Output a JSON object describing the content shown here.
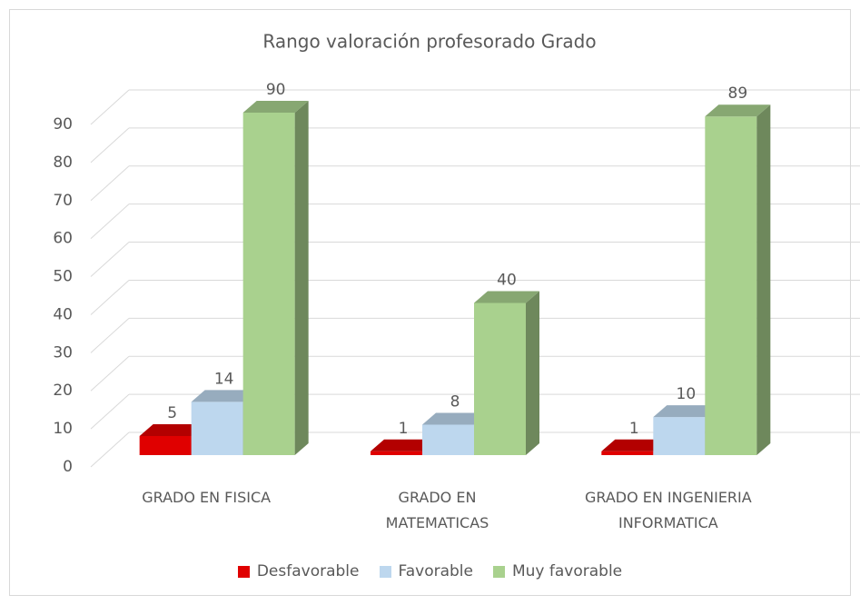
{
  "chart_data": {
    "type": "bar3d",
    "title": "Rango valoración profesorado Grado",
    "categories": [
      "GRADO EN FISICA",
      "GRADO EN MATEMATICAS",
      "GRADO EN INGENIERIA INFORMATICA"
    ],
    "series": [
      {
        "name": "Desfavorable",
        "color": "#e00000",
        "values": [
          5,
          1,
          1
        ]
      },
      {
        "name": "Favorable",
        "color": "#bdd7ee",
        "values": [
          14,
          8,
          10
        ]
      },
      {
        "name": "Muy favorable",
        "color": "#a9d18e",
        "values": [
          90,
          40,
          89
        ]
      }
    ],
    "ylim": [
      0,
      90
    ],
    "yticks": [
      0,
      10,
      20,
      30,
      40,
      50,
      60,
      70,
      80,
      90
    ],
    "grid": true,
    "legend": "bottom"
  }
}
